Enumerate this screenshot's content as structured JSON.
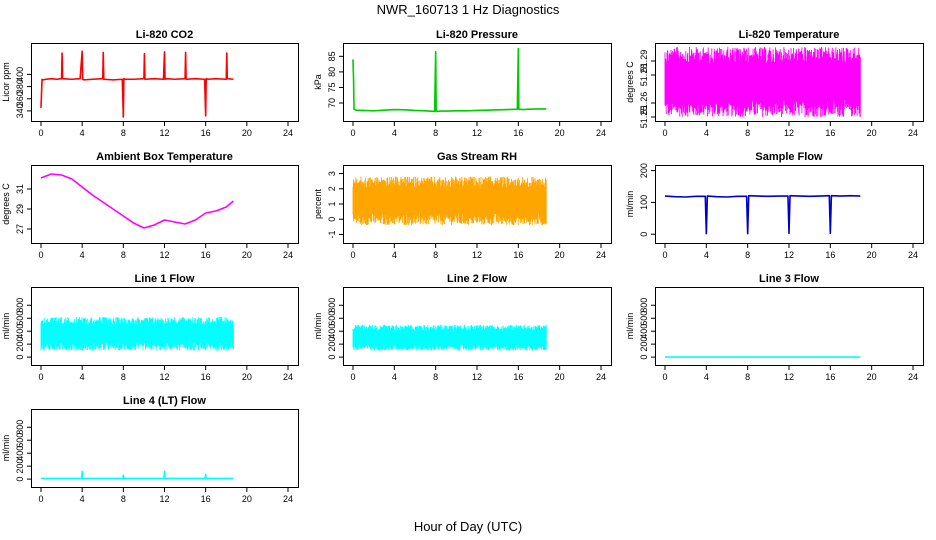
{
  "figure": {
    "title": "NWR_160713  1 Hz Diagnostics",
    "xlabel": "Hour of Day (UTC)"
  },
  "chart_data": [
    {
      "type": "line",
      "title": "Li-820 CO2",
      "ylabel": "Licor ppm",
      "color": "#ff0000",
      "xlim": [
        0,
        24
      ],
      "ylim": [
        330,
        445
      ],
      "x_ticks": [
        0,
        4,
        8,
        12,
        16,
        20,
        24
      ],
      "y_ticks": [
        340,
        360,
        380,
        400
      ],
      "series": [
        {
          "x": [
            0.0,
            0.1,
            0.2,
            0.5,
            1.0,
            1.5,
            2.0,
            2.05,
            2.1,
            3.0,
            3.8,
            4.0,
            4.05,
            4.2,
            5.0,
            6.0,
            6.05,
            6.1,
            7.0,
            7.9,
            8.0,
            8.05,
            8.2,
            9.0,
            10.0,
            10.05,
            10.1,
            11.0,
            11.9,
            12.0,
            12.05,
            12.2,
            13.0,
            14.0,
            14.05,
            14.1,
            15.0,
            15.9,
            16.0,
            16.05,
            16.2,
            17.0,
            18.0,
            18.05,
            18.1,
            18.7
          ],
          "values": [
            345,
            392,
            391,
            392,
            393,
            392,
            393,
            435,
            393,
            392,
            393,
            438,
            392,
            391,
            392,
            393,
            436,
            392,
            391,
            392,
            330,
            393,
            392,
            392,
            393,
            434,
            392,
            393,
            392,
            437,
            392,
            393,
            392,
            393,
            436,
            392,
            393,
            392,
            332,
            393,
            392,
            393,
            392,
            435,
            393,
            392
          ]
        }
      ]
    },
    {
      "type": "line",
      "title": "Li-820 Pressure",
      "ylabel": "kPa",
      "color": "#00cc00",
      "xlim": [
        0,
        24
      ],
      "ylim": [
        65.5,
        88
      ],
      "x_ticks": [
        0,
        4,
        8,
        12,
        16,
        20,
        24
      ],
      "y_ticks": [
        70,
        75,
        80,
        85
      ],
      "series": [
        {
          "x": [
            0.0,
            0.05,
            0.1,
            0.3,
            1.0,
            2.0,
            3.0,
            4.0,
            5.0,
            6.0,
            7.0,
            7.9,
            8.0,
            8.05,
            8.5,
            9.0,
            10.0,
            11.0,
            12.0,
            13.0,
            14.0,
            15.0,
            15.9,
            16.0,
            16.05,
            16.5,
            17.0,
            18.0,
            18.7
          ],
          "values": [
            84,
            78,
            68,
            67.7,
            67.6,
            67.5,
            67.7,
            67.9,
            67.8,
            67.6,
            67.5,
            67.3,
            86.5,
            67.3,
            67.4,
            67.4,
            67.5,
            67.5,
            67.6,
            67.7,
            67.8,
            67.9,
            68.0,
            87.5,
            68.0,
            67.9,
            68.0,
            68.1,
            68.1
          ]
        }
      ]
    },
    {
      "type": "area",
      "title": "Li-820 Temperature",
      "ylabel": "degrees C",
      "color": "#ff00ff",
      "xlim": [
        0,
        24
      ],
      "ylim": [
        51.25,
        51.3
      ],
      "x_ticks": [
        0,
        4,
        8,
        12,
        16,
        20,
        24
      ],
      "y_ticks": [
        51.25,
        51.26,
        51.28,
        51.29
      ],
      "series": [
        {
          "x_range": [
            0,
            18.9
          ],
          "values": [
            51.25,
            51.3
          ]
        }
      ]
    },
    {
      "type": "line",
      "title": "Ambient Box Temperature",
      "ylabel": "degrees C",
      "color": "#ff00ff",
      "xlim": [
        0,
        24
      ],
      "ylim": [
        26,
        33
      ],
      "x_ticks": [
        0,
        4,
        8,
        12,
        16,
        20,
        24
      ],
      "y_ticks": [
        27,
        29,
        31
      ],
      "series": [
        {
          "x": [
            0,
            1,
            2,
            3,
            4,
            5,
            6,
            7,
            8,
            9,
            10,
            11,
            12,
            13,
            14,
            15,
            16,
            17,
            18,
            18.7
          ],
          "values": [
            32.1,
            32.5,
            32.4,
            32.0,
            31.2,
            30.4,
            29.7,
            29.0,
            28.3,
            27.6,
            27.1,
            27.4,
            27.9,
            27.7,
            27.5,
            27.9,
            28.6,
            28.8,
            29.2,
            29.8
          ]
        }
      ]
    },
    {
      "type": "area",
      "title": "Gas Stream RH",
      "ylabel": "percent",
      "color": "#ffa500",
      "xlim": [
        0,
        24
      ],
      "ylim": [
        -1.3,
        3.3
      ],
      "x_ticks": [
        0,
        4,
        8,
        12,
        16,
        20,
        24
      ],
      "y_ticks": [
        -1,
        0,
        1,
        2,
        3
      ],
      "series": [
        {
          "x_range": [
            0,
            18.7
          ],
          "values": [
            -0.4,
            2.8
          ]
        }
      ]
    },
    {
      "type": "line",
      "title": "Sample Flow",
      "ylabel": "ml/min",
      "color": "#0000cc",
      "xlim": [
        0,
        24
      ],
      "ylim": [
        -15,
        205
      ],
      "x_ticks": [
        0,
        4,
        8,
        12,
        16,
        20,
        24
      ],
      "y_ticks": [
        0,
        100,
        200
      ],
      "series": [
        {
          "x": [
            0.0,
            1.0,
            2.0,
            3.0,
            3.9,
            4.0,
            4.1,
            5.0,
            6.0,
            7.0,
            7.9,
            8.0,
            8.1,
            9.0,
            10.0,
            11.0,
            11.9,
            12.0,
            12.1,
            13.0,
            14.0,
            15.0,
            15.9,
            16.0,
            16.1,
            17.0,
            18.0,
            18.9
          ],
          "values": [
            120,
            118,
            117,
            119,
            119,
            2,
            120,
            118,
            117,
            119,
            119,
            2,
            121,
            120,
            119,
            120,
            120,
            3,
            121,
            120,
            119,
            120,
            121,
            3,
            121,
            120,
            121,
            120
          ]
        }
      ]
    },
    {
      "type": "area",
      "title": "Line 1 Flow",
      "ylabel": "ml/min",
      "color": "#00ffff",
      "xlim": [
        0,
        24
      ],
      "ylim": [
        -60,
        1020
      ],
      "x_ticks": [
        0,
        4,
        8,
        12,
        16,
        20,
        24
      ],
      "y_ticks": [
        0,
        200,
        400,
        600,
        800
      ],
      "series": [
        {
          "x_range": [
            0,
            18.7
          ],
          "values": [
            100,
            620
          ]
        }
      ]
    },
    {
      "type": "area",
      "title": "Line 2 Flow",
      "ylabel": "ml/min",
      "color": "#00ffff",
      "xlim": [
        0,
        24
      ],
      "ylim": [
        -60,
        1020
      ],
      "x_ticks": [
        0,
        4,
        8,
        12,
        16,
        20,
        24
      ],
      "y_ticks": [
        0,
        200,
        400,
        600,
        800
      ],
      "series": [
        {
          "x_range": [
            0,
            18.7
          ],
          "values": [
            100,
            500
          ]
        }
      ]
    },
    {
      "type": "line",
      "title": "Line 3 Flow",
      "ylabel": "ml/min",
      "color": "#00ffff",
      "xlim": [
        0,
        24
      ],
      "ylim": [
        -60,
        1020
      ],
      "x_ticks": [
        0,
        4,
        8,
        12,
        16,
        20,
        24
      ],
      "y_ticks": [
        0,
        200,
        400,
        600,
        800
      ],
      "series": [
        {
          "x": [
            0,
            18.9
          ],
          "values": [
            0,
            0
          ]
        }
      ]
    },
    {
      "type": "line",
      "title": "Line 4 (LT) Flow",
      "ylabel": "ml/min",
      "color": "#00ffff",
      "xlim": [
        0,
        24
      ],
      "ylim": [
        -60,
        1020
      ],
      "x_ticks": [
        0,
        4,
        8,
        12,
        16,
        20,
        24
      ],
      "y_ticks": [
        0,
        200,
        400,
        600,
        800
      ],
      "series": [
        {
          "x": [
            0.0,
            3.95,
            4.0,
            4.05,
            7.95,
            8.0,
            8.05,
            11.95,
            12.0,
            12.05,
            15.95,
            16.0,
            16.05,
            18.7
          ],
          "values": [
            10,
            10,
            120,
            10,
            10,
            60,
            10,
            10,
            120,
            10,
            10,
            70,
            10,
            10
          ]
        }
      ]
    }
  ]
}
